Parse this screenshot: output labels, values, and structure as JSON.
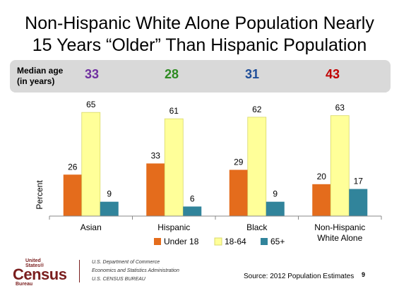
{
  "title_line1": "Non-Hispanic White Alone Population Nearly",
  "title_line2": "15 Years “Older” Than Hispanic Population",
  "median": {
    "label_line1": "Median age",
    "label_line2": "(in years)",
    "values": [
      {
        "value": "33",
        "color": "#7030a0"
      },
      {
        "value": "28",
        "color": "#2e8b22"
      },
      {
        "value": "31",
        "color": "#1f4e99"
      },
      {
        "value": "43",
        "color": "#c00000"
      }
    ]
  },
  "chart_data": {
    "type": "bar",
    "ylabel": "Percent",
    "ylim": [
      0,
      70
    ],
    "grid": false,
    "legend_position": "bottom",
    "categories": [
      [
        "Asian"
      ],
      [
        "Hispanic"
      ],
      [
        "Black"
      ],
      [
        "Non-Hispanic",
        "White Alone"
      ]
    ],
    "series": [
      {
        "name": "Under 18",
        "color": "#e46c1c",
        "values": [
          26,
          33,
          29,
          20
        ]
      },
      {
        "name": "18-64",
        "color": "#ffff99",
        "values": [
          65,
          61,
          62,
          63
        ]
      },
      {
        "name": "65+",
        "color": "#31849b",
        "values": [
          9,
          6,
          9,
          17
        ]
      }
    ]
  },
  "footer": {
    "logo_top": "United States®",
    "logo_main": "Census",
    "logo_bottom": "Bureau",
    "agency_line1": "U.S. Department of Commerce",
    "agency_line2": "Economics and Statistics Administration",
    "agency_line3": "U.S. CENSUS BUREAU",
    "source": "Source: 2012 Population Estimates",
    "page_number": "9"
  }
}
